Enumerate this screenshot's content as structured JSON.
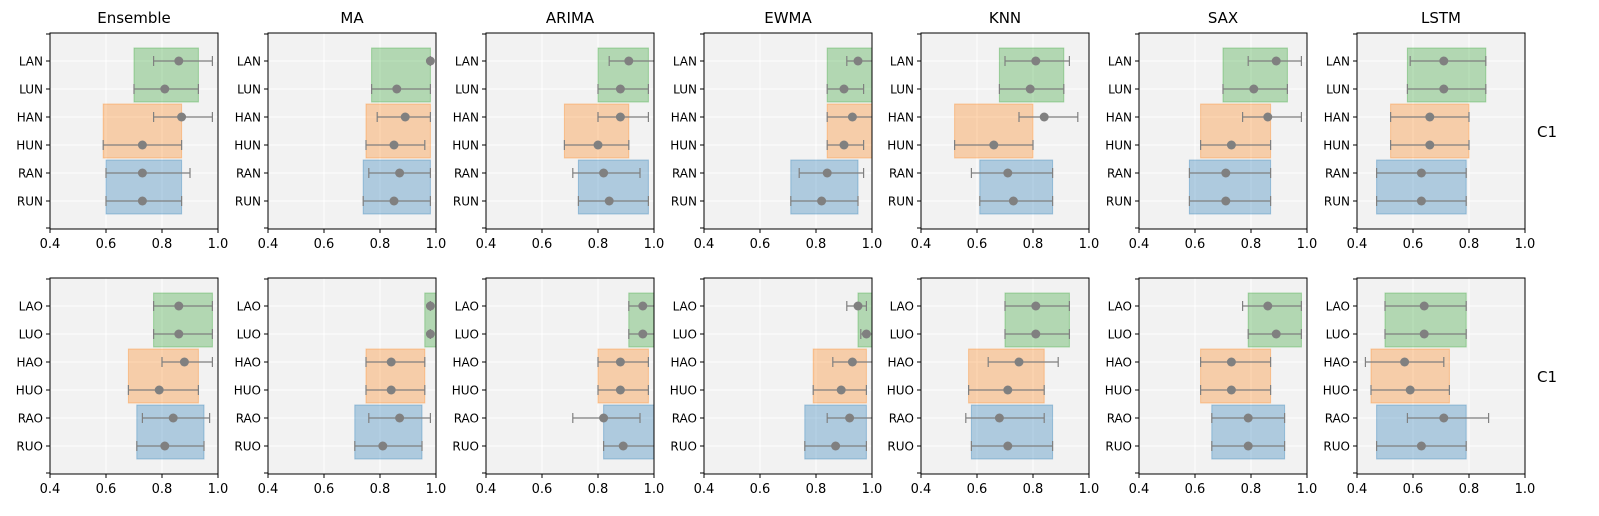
{
  "figure": {
    "row_labels": [
      "C1",
      "C1"
    ],
    "x_ticks": [
      "0.4",
      "0.6",
      "0.8",
      "1.0"
    ],
    "xlim": [
      0.4,
      1.0
    ],
    "grid": true,
    "group_colors": {
      "L": "#2ca02c",
      "H": "#ff7f0e",
      "R": "#1f77b4"
    },
    "marker_color": "#808080"
  },
  "chart_data": [
    {
      "type": "bar",
      "row": 0,
      "title": "Ensemble",
      "categories": [
        "LAN",
        "LUN",
        "HAN",
        "HUN",
        "RAN",
        "RUN"
      ],
      "bands": {
        "L": [
          0.7,
          0.93
        ],
        "H": [
          0.59,
          0.87
        ],
        "R": [
          0.6,
          0.87
        ]
      },
      "means": [
        0.86,
        0.81,
        0.87,
        0.73,
        0.73,
        0.73
      ],
      "err_lo": [
        0.77,
        0.7,
        0.77,
        0.59,
        0.6,
        0.6
      ],
      "err_hi": [
        0.98,
        0.93,
        0.98,
        0.87,
        0.9,
        0.87
      ],
      "xlim": [
        0.4,
        1.0
      ]
    },
    {
      "type": "bar",
      "row": 0,
      "title": "MA",
      "categories": [
        "LAN",
        "LUN",
        "HAN",
        "HUN",
        "RAN",
        "RUN"
      ],
      "bands": {
        "L": [
          0.77,
          0.98
        ],
        "H": [
          0.75,
          0.98
        ],
        "R": [
          0.74,
          0.98
        ]
      },
      "means": [
        0.98,
        0.86,
        0.89,
        0.85,
        0.87,
        0.85
      ],
      "err_lo": [
        0.98,
        0.77,
        0.79,
        0.75,
        0.76,
        0.74
      ],
      "err_hi": [
        0.98,
        0.98,
        0.98,
        0.96,
        0.98,
        0.98
      ],
      "xlim": [
        0.4,
        1.0
      ]
    },
    {
      "type": "bar",
      "row": 0,
      "title": "ARIMA",
      "categories": [
        "LAN",
        "LUN",
        "HAN",
        "HUN",
        "RAN",
        "RUN"
      ],
      "bands": {
        "L": [
          0.8,
          0.98
        ],
        "H": [
          0.68,
          0.91
        ],
        "R": [
          0.73,
          0.98
        ]
      },
      "means": [
        0.91,
        0.88,
        0.88,
        0.8,
        0.82,
        0.84
      ],
      "err_lo": [
        0.84,
        0.8,
        0.8,
        0.68,
        0.71,
        0.73
      ],
      "err_hi": [
        1.0,
        0.98,
        0.98,
        0.91,
        0.95,
        0.98
      ],
      "xlim": [
        0.4,
        1.0
      ]
    },
    {
      "type": "bar",
      "row": 0,
      "title": "EWMA",
      "categories": [
        "LAN",
        "LUN",
        "HAN",
        "HUN",
        "RAN",
        "RUN"
      ],
      "bands": {
        "L": [
          0.84,
          1.0
        ],
        "H": [
          0.84,
          1.0
        ],
        "R": [
          0.71,
          0.95
        ]
      },
      "means": [
        0.95,
        0.9,
        0.93,
        0.9,
        0.84,
        0.82
      ],
      "err_lo": [
        0.91,
        0.84,
        0.84,
        0.84,
        0.74,
        0.71
      ],
      "err_hi": [
        1.0,
        0.97,
        1.0,
        0.97,
        0.97,
        0.95
      ],
      "xlim": [
        0.4,
        1.0
      ]
    },
    {
      "type": "bar",
      "row": 0,
      "title": "KNN",
      "categories": [
        "LAN",
        "LUN",
        "HAN",
        "HUN",
        "RAN",
        "RUN"
      ],
      "bands": {
        "L": [
          0.68,
          0.91
        ],
        "H": [
          0.52,
          0.8
        ],
        "R": [
          0.61,
          0.87
        ]
      },
      "means": [
        0.81,
        0.79,
        0.84,
        0.66,
        0.71,
        0.73
      ],
      "err_lo": [
        0.7,
        0.68,
        0.75,
        0.52,
        0.58,
        0.61
      ],
      "err_hi": [
        0.93,
        0.91,
        0.96,
        0.8,
        0.87,
        0.87
      ],
      "xlim": [
        0.4,
        1.0
      ]
    },
    {
      "type": "bar",
      "row": 0,
      "title": "SAX",
      "categories": [
        "LAN",
        "LUN",
        "HAN",
        "HUN",
        "RAN",
        "RUN"
      ],
      "bands": {
        "L": [
          0.7,
          0.93
        ],
        "H": [
          0.62,
          0.87
        ],
        "R": [
          0.58,
          0.87
        ]
      },
      "means": [
        0.89,
        0.81,
        0.86,
        0.73,
        0.71,
        0.71
      ],
      "err_lo": [
        0.79,
        0.7,
        0.77,
        0.62,
        0.58,
        0.58
      ],
      "err_hi": [
        0.98,
        0.93,
        0.98,
        0.87,
        0.87,
        0.87
      ],
      "xlim": [
        0.4,
        1.0
      ]
    },
    {
      "type": "bar",
      "row": 0,
      "title": "LSTM",
      "categories": [
        "LAN",
        "LUN",
        "HAN",
        "HUN",
        "RAN",
        "RUN"
      ],
      "bands": {
        "L": [
          0.58,
          0.86
        ],
        "H": [
          0.52,
          0.8
        ],
        "R": [
          0.47,
          0.79
        ]
      },
      "means": [
        0.71,
        0.71,
        0.66,
        0.66,
        0.63,
        0.63
      ],
      "err_lo": [
        0.59,
        0.58,
        0.52,
        0.52,
        0.47,
        0.47
      ],
      "err_hi": [
        0.86,
        0.86,
        0.8,
        0.8,
        0.79,
        0.79
      ],
      "xlim": [
        0.4,
        1.0
      ]
    },
    {
      "type": "bar",
      "row": 1,
      "title": "",
      "categories": [
        "LAO",
        "LUO",
        "HAO",
        "HUO",
        "RAO",
        "RUO"
      ],
      "bands": {
        "L": [
          0.77,
          0.98
        ],
        "H": [
          0.68,
          0.93
        ],
        "R": [
          0.71,
          0.95
        ]
      },
      "means": [
        0.86,
        0.86,
        0.88,
        0.79,
        0.84,
        0.81
      ],
      "err_lo": [
        0.77,
        0.77,
        0.8,
        0.68,
        0.73,
        0.71
      ],
      "err_hi": [
        0.98,
        0.98,
        0.98,
        0.93,
        0.97,
        0.95
      ],
      "xlim": [
        0.4,
        1.0
      ]
    },
    {
      "type": "bar",
      "row": 1,
      "title": "",
      "categories": [
        "LAO",
        "LUO",
        "HAO",
        "HUO",
        "RAO",
        "RUO"
      ],
      "bands": {
        "L": [
          0.96,
          1.0
        ],
        "H": [
          0.75,
          0.96
        ],
        "R": [
          0.71,
          0.95
        ]
      },
      "means": [
        0.98,
        0.98,
        0.84,
        0.84,
        0.87,
        0.81
      ],
      "err_lo": [
        0.98,
        0.98,
        0.75,
        0.75,
        0.76,
        0.71
      ],
      "err_hi": [
        0.98,
        0.98,
        0.96,
        0.96,
        0.98,
        0.95
      ],
      "xlim": [
        0.4,
        1.0
      ]
    },
    {
      "type": "bar",
      "row": 1,
      "title": "",
      "categories": [
        "LAO",
        "LUO",
        "HAO",
        "HUO",
        "RAO",
        "RUO"
      ],
      "bands": {
        "L": [
          0.91,
          1.0
        ],
        "H": [
          0.8,
          0.98
        ],
        "R": [
          0.82,
          1.0
        ]
      },
      "means": [
        0.96,
        0.96,
        0.88,
        0.88,
        0.82,
        0.89
      ],
      "err_lo": [
        0.91,
        0.91,
        0.8,
        0.8,
        0.71,
        0.82
      ],
      "err_hi": [
        1.0,
        1.0,
        0.98,
        0.98,
        0.95,
        1.0
      ],
      "xlim": [
        0.4,
        1.0
      ]
    },
    {
      "type": "bar",
      "row": 1,
      "title": "",
      "categories": [
        "LAO",
        "LUO",
        "HAO",
        "HUO",
        "RAO",
        "RUO"
      ],
      "bands": {
        "L": [
          0.95,
          1.0
        ],
        "H": [
          0.79,
          0.98
        ],
        "R": [
          0.76,
          0.98
        ]
      },
      "means": [
        0.95,
        0.98,
        0.93,
        0.89,
        0.92,
        0.87
      ],
      "err_lo": [
        0.91,
        0.96,
        0.86,
        0.79,
        0.84,
        0.76
      ],
      "err_hi": [
        0.98,
        1.0,
        1.0,
        0.98,
        1.0,
        0.98
      ],
      "xlim": [
        0.4,
        1.0
      ]
    },
    {
      "type": "bar",
      "row": 1,
      "title": "",
      "categories": [
        "LAO",
        "LUO",
        "HAO",
        "HUO",
        "RAO",
        "RUO"
      ],
      "bands": {
        "L": [
          0.7,
          0.93
        ],
        "H": [
          0.57,
          0.84
        ],
        "R": [
          0.58,
          0.87
        ]
      },
      "means": [
        0.81,
        0.81,
        0.75,
        0.71,
        0.68,
        0.71
      ],
      "err_lo": [
        0.7,
        0.7,
        0.64,
        0.57,
        0.56,
        0.58
      ],
      "err_hi": [
        0.93,
        0.93,
        0.89,
        0.84,
        0.84,
        0.87
      ],
      "xlim": [
        0.4,
        1.0
      ]
    },
    {
      "type": "bar",
      "row": 1,
      "title": "",
      "categories": [
        "LAO",
        "LUO",
        "HAO",
        "HUO",
        "RAO",
        "RUO"
      ],
      "bands": {
        "L": [
          0.79,
          0.98
        ],
        "H": [
          0.62,
          0.87
        ],
        "R": [
          0.66,
          0.92
        ]
      },
      "means": [
        0.86,
        0.89,
        0.73,
        0.73,
        0.79,
        0.79
      ],
      "err_lo": [
        0.77,
        0.79,
        0.62,
        0.62,
        0.66,
        0.66
      ],
      "err_hi": [
        0.98,
        0.98,
        0.87,
        0.87,
        0.92,
        0.92
      ],
      "xlim": [
        0.4,
        1.0
      ]
    },
    {
      "type": "bar",
      "row": 1,
      "title": "",
      "categories": [
        "LAO",
        "LUO",
        "HAO",
        "HUO",
        "RAO",
        "RUO"
      ],
      "bands": {
        "L": [
          0.5,
          0.79
        ],
        "H": [
          0.45,
          0.73
        ],
        "R": [
          0.47,
          0.79
        ]
      },
      "means": [
        0.64,
        0.64,
        0.57,
        0.59,
        0.71,
        0.63
      ],
      "err_lo": [
        0.5,
        0.5,
        0.43,
        0.45,
        0.58,
        0.47
      ],
      "err_hi": [
        0.79,
        0.79,
        0.71,
        0.73,
        0.87,
        0.79
      ],
      "xlim": [
        0.4,
        1.0
      ]
    }
  ]
}
